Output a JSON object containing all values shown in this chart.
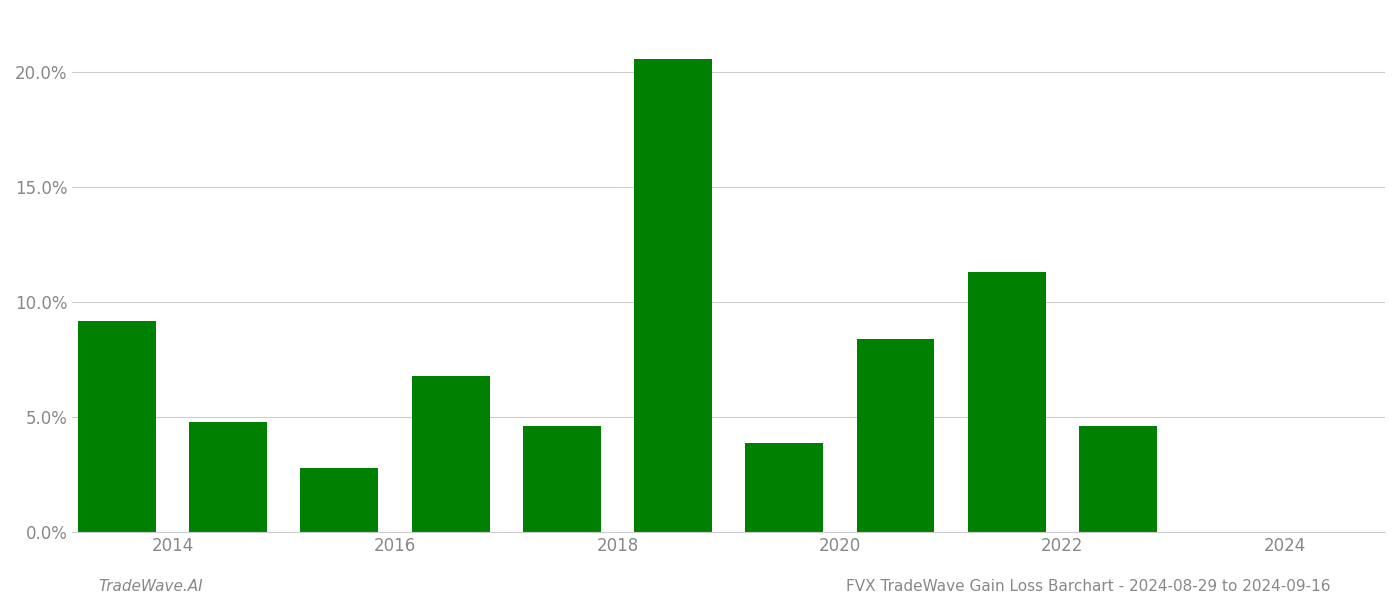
{
  "years": [
    2013,
    2014,
    2015,
    2016,
    2017,
    2018,
    2019,
    2020,
    2021,
    2022,
    2023
  ],
  "values": [
    0.092,
    0.048,
    0.028,
    0.068,
    0.046,
    0.206,
    0.039,
    0.084,
    0.113,
    0.046,
    0.0
  ],
  "bar_color": "#008000",
  "background_color": "#ffffff",
  "ylim": [
    0,
    0.225
  ],
  "yticks": [
    0.0,
    0.05,
    0.1,
    0.15,
    0.2
  ],
  "ytick_labels": [
    "0.0%",
    "5.0%",
    "10.0%",
    "15.0%",
    "20.0%"
  ],
  "grid_color": "#cccccc",
  "footer_left": "TradeWave.AI",
  "footer_right": "FVX TradeWave Gain Loss Barchart - 2024-08-29 to 2024-09-16",
  "footer_color": "#888888",
  "footer_fontsize": 11,
  "axis_label_color": "#888888",
  "bar_width": 0.7,
  "xtick_positions": [
    2013.5,
    2015.5,
    2017.5,
    2019.5,
    2021.5,
    2023.5
  ],
  "xtick_labels": [
    "2014",
    "2016",
    "2018",
    "2020",
    "2022",
    "2024"
  ],
  "xlim": [
    2012.6,
    2024.4
  ]
}
